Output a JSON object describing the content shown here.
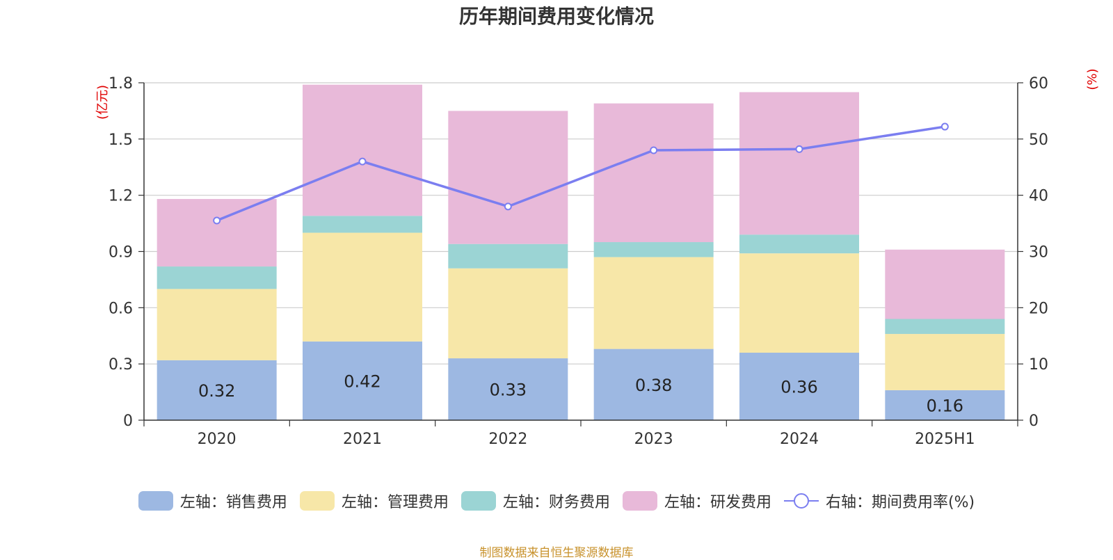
{
  "chart_data": {
    "type": "bar",
    "stacked": true,
    "title": "历年期间费用变化情况",
    "categories": [
      "2020",
      "2021",
      "2022",
      "2023",
      "2024",
      "2025H1"
    ],
    "left_axis": {
      "unit_label": "(亿元)",
      "ylim": [
        0,
        1.8
      ],
      "ticks": [
        "0",
        "0.3",
        "0.6",
        "0.9",
        "1.2",
        "1.5",
        "1.8"
      ]
    },
    "right_axis": {
      "unit_label": "(%)",
      "ylim": [
        0,
        60
      ],
      "ticks": [
        "0",
        "10",
        "20",
        "30",
        "40",
        "50",
        "60"
      ]
    },
    "series": [
      {
        "name": "左轴：销售费用",
        "axis": "left",
        "color": "#9db8e2",
        "values": [
          0.32,
          0.42,
          0.33,
          0.38,
          0.36,
          0.16
        ],
        "show_labels": true
      },
      {
        "name": "左轴：管理费用",
        "axis": "left",
        "color": "#f7e7a8",
        "values": [
          0.38,
          0.58,
          0.48,
          0.49,
          0.53,
          0.3
        ]
      },
      {
        "name": "左轴：财务费用",
        "axis": "left",
        "color": "#9bd4d4",
        "values": [
          0.12,
          0.09,
          0.13,
          0.08,
          0.1,
          0.08
        ]
      },
      {
        "name": "左轴：研发费用",
        "axis": "left",
        "color": "#e8b9d9",
        "values": [
          0.36,
          0.7,
          0.71,
          0.74,
          0.76,
          0.37
        ]
      },
      {
        "name": "右轴：期间费用率(%)",
        "axis": "right",
        "type": "line",
        "color": "#7b7ef0",
        "values": [
          35.5,
          46.0,
          38.0,
          48.0,
          48.2,
          52.2
        ]
      }
    ],
    "grid": true,
    "legend_position": "bottom"
  },
  "source_note": "制图数据来自恒生聚源数据库"
}
